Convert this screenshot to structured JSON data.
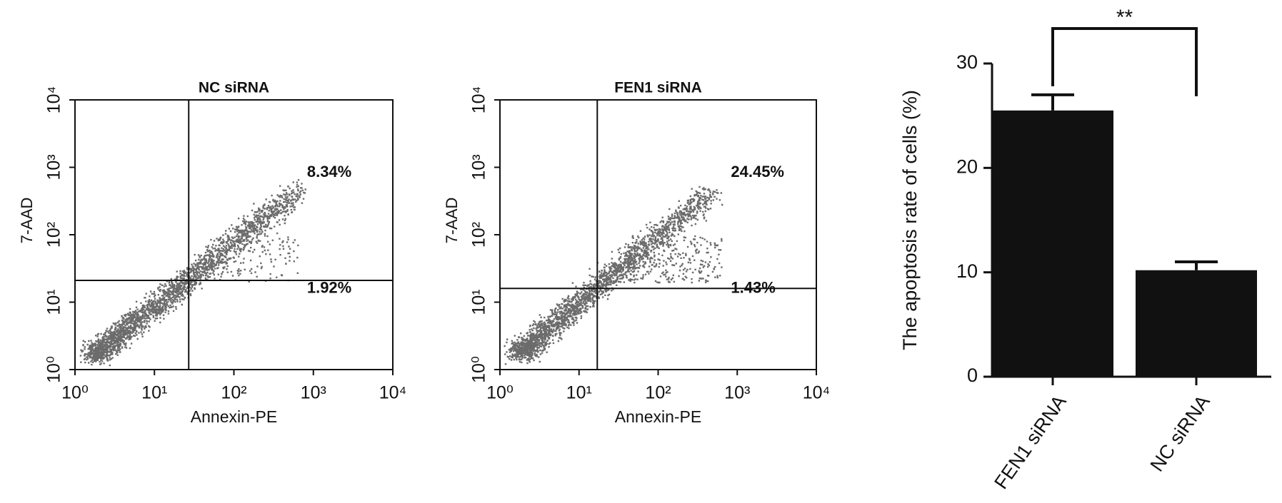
{
  "chart_data": [
    {
      "type": "scatter",
      "title": "NC siRNA",
      "x_label": "Annexin-PE",
      "y_label": "7-AAD",
      "log_scale": true,
      "xlim": [
        1,
        10000
      ],
      "ylim": [
        1,
        10000
      ],
      "xticks": [
        {
          "value": 1,
          "label": "10⁰"
        },
        {
          "value": 10,
          "label": "10¹"
        },
        {
          "value": 100,
          "label": "10²"
        },
        {
          "value": 1000,
          "label": "10³"
        },
        {
          "value": 10000,
          "label": "10⁴"
        }
      ],
      "yticks": [
        {
          "value": 1,
          "label": "10⁰"
        },
        {
          "value": 10,
          "label": "10¹"
        },
        {
          "value": 100,
          "label": "10²"
        },
        {
          "value": 1000,
          "label": "10³"
        },
        {
          "value": 10000,
          "label": "10⁴"
        }
      ],
      "gate": {
        "x": 27,
        "y": 21
      },
      "quadrant_percentages": {
        "values": [
          8.34,
          1.92
        ],
        "value_labels": [
          "8.34%",
          "1.92%"
        ]
      },
      "color": "#6b6b6b"
    },
    {
      "type": "scatter",
      "title": "FEN1 siRNA",
      "x_label": "Annexin-PE",
      "y_label": "7-AAD",
      "log_scale": true,
      "xlim": [
        1,
        10000
      ],
      "ylim": [
        1,
        10000
      ],
      "xticks": [
        {
          "value": 1,
          "label": "10⁰"
        },
        {
          "value": 10,
          "label": "10¹"
        },
        {
          "value": 100,
          "label": "10²"
        },
        {
          "value": 1000,
          "label": "10³"
        },
        {
          "value": 10000,
          "label": "10⁴"
        }
      ],
      "yticks": [
        {
          "value": 1,
          "label": "10⁰"
        },
        {
          "value": 10,
          "label": "10¹"
        },
        {
          "value": 100,
          "label": "10²"
        },
        {
          "value": 1000,
          "label": "10³"
        },
        {
          "value": 10000,
          "label": "10⁴"
        }
      ],
      "gate": {
        "x": 17,
        "y": 16
      },
      "quadrant_percentages": {
        "values": [
          24.45,
          1.43
        ],
        "value_labels": [
          "24.45%",
          "1.43%"
        ]
      },
      "color": "#6b6b6b"
    },
    {
      "type": "bar",
      "y_label": "The apoptosis rate of cells (%)",
      "categories": [
        "FEN1 siRNA",
        "NC siRNA"
      ],
      "values": [
        25.5,
        10.2
      ],
      "errors": [
        1.5,
        0.8
      ],
      "color": "#111111",
      "ylim": [
        0,
        30
      ],
      "yticks": [
        0,
        10,
        20,
        30
      ],
      "significance": "**"
    }
  ]
}
